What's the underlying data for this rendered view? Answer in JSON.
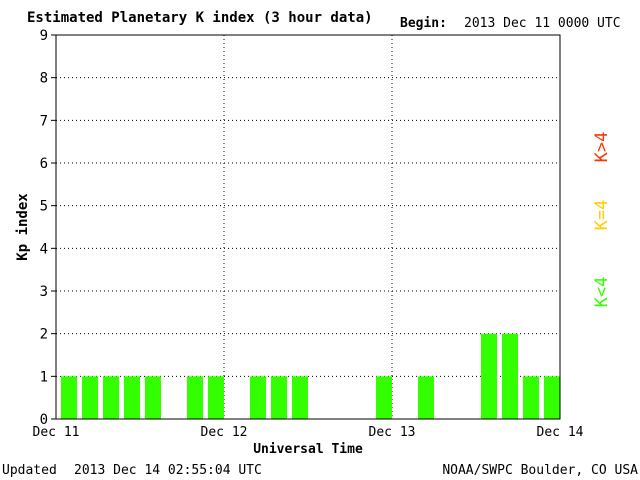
{
  "header": {
    "title": "Estimated Planetary K index (3 hour data)",
    "begin_label": "Begin:",
    "begin_value": "2013 Dec 11 0000 UTC"
  },
  "footer": {
    "updated_label": "Updated",
    "updated_value": "2013 Dec 14 02:55:04 UTC",
    "source": "NOAA/SWPC Boulder, CO USA"
  },
  "legend": {
    "items": [
      {
        "label": "K>4",
        "color": "#ff3300"
      },
      {
        "label": "K=4",
        "color": "#ffcc00"
      },
      {
        "label": "K<4",
        "color": "#33ff00"
      }
    ]
  },
  "chart_data": {
    "type": "bar",
    "title": "Estimated Planetary K index (3 hour data)",
    "xlabel": "Universal Time",
    "ylabel": "Kp index",
    "ylim": [
      0,
      9
    ],
    "yticks": [
      "0",
      "1",
      "2",
      "3",
      "4",
      "5",
      "6",
      "7",
      "8",
      "9"
    ],
    "xticks": [
      "Dec 11",
      "Dec 12",
      "Dec 13",
      "Dec 14"
    ],
    "bins_per_day": 8,
    "days": 3,
    "grid": "dotted",
    "bar_color": "#33ff00",
    "values": [
      1,
      1,
      1,
      1,
      1,
      0,
      1,
      1,
      0,
      1,
      1,
      1,
      0,
      0,
      0,
      1,
      0,
      1,
      0,
      0,
      2,
      2,
      1,
      1
    ]
  }
}
